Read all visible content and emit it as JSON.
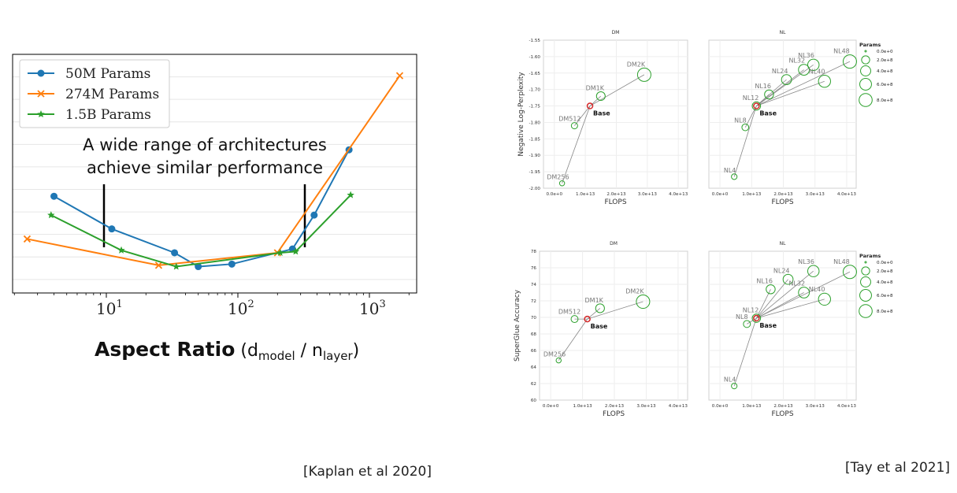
{
  "citations": {
    "left": "[Kaplan et al 2020]",
    "right": "[Tay et al 2021]"
  },
  "chart_data": [
    {
      "type": "line",
      "xlabel_main": "Aspect Ratio",
      "xlabel_paren_open": " (d",
      "xlabel_sub1": "model",
      "xlabel_mid": " / n",
      "xlabel_sub2": "layer",
      "xlabel_paren_close": ")",
      "annotation": [
        "A wide range of architectures",
        "achieve similar performance"
      ],
      "xscale": "log",
      "xticks": [
        {
          "base": "10",
          "exp": "1",
          "value": 10
        },
        {
          "base": "10",
          "exp": "2",
          "value": 100
        },
        {
          "base": "10",
          "exp": "3",
          "value": 1000
        }
      ],
      "legend": "top-left",
      "grid": "horizontal",
      "series": [
        {
          "name": "50M Params",
          "color": "#1f77b4",
          "marker": "circle",
          "x": [
            4,
            11,
            33,
            50,
            90,
            260,
            380,
            700
          ],
          "y": [
            3.32,
            3.06,
            2.87,
            2.76,
            2.78,
            2.9,
            3.17,
            3.69
          ]
        },
        {
          "name": "274M Params",
          "color": "#ff7f0e",
          "marker": "x",
          "x": [
            2.5,
            25,
            200,
            1700
          ],
          "y": [
            2.98,
            2.77,
            2.87,
            4.28
          ]
        },
        {
          "name": "1.5B Params",
          "color": "#2ca02c",
          "marker": "star",
          "x": [
            3.8,
            13,
            34,
            210,
            275,
            720
          ],
          "y": [
            3.17,
            2.89,
            2.76,
            2.87,
            2.88,
            3.33
          ]
        }
      ]
    },
    {
      "type": "scatter",
      "title": "DM",
      "xlabel": "FLOPS",
      "ylabel": "Negative Log-Perplexity",
      "yticks": [
        "-1.55",
        "-1.60",
        "-1.65",
        "-1.70",
        "-1.75",
        "-1.80",
        "-1.85",
        "-1.90",
        "-1.95",
        "-2.00"
      ],
      "xticks": [
        "0.0e+0",
        "1.0e+13",
        "2.0e+13",
        "3.0e+13",
        "4.0e+13"
      ],
      "base": {
        "label": "Base",
        "x": 11500000000000.0,
        "y": -1.75
      },
      "points": [
        {
          "label": "DM256",
          "x": 2500000000000.0,
          "y": -1.985,
          "params": 30000000.0
        },
        {
          "label": "DM512",
          "x": 6500000000000.0,
          "y": -1.81,
          "params": 80000000.0
        },
        {
          "label": "DM1K",
          "x": 15000000000000.0,
          "y": -1.72,
          "params": 250000000.0
        },
        {
          "label": "DM2K",
          "x": 29000000000000.0,
          "y": -1.655,
          "params": 850000000.0
        }
      ]
    },
    {
      "type": "scatter",
      "title": "NL",
      "xlabel": "FLOPS",
      "xticks": [
        "0.0e+0",
        "1.0e+13",
        "2.0e+13",
        "3.0e+13",
        "4.0e+13"
      ],
      "legend_title": "Params",
      "legend_items": [
        "0.0e+0",
        "2.0e+8",
        "4.0e+8",
        "6.0e+8",
        "8.0e+8"
      ],
      "base": {
        "label": "Base",
        "x": 11500000000000.0,
        "y": -1.75
      },
      "points": [
        {
          "label": "NL4",
          "x": 4500000000000.0,
          "y": -1.965,
          "params": 50000000.0
        },
        {
          "label": "NL8",
          "x": 8000000000000.0,
          "y": -1.815,
          "params": 110000000.0
        },
        {
          "label": "NL12",
          "x": 11500000000000.0,
          "y": -1.75,
          "params": 220000000.0
        },
        {
          "label": "NL16",
          "x": 15500000000000.0,
          "y": -1.715,
          "params": 280000000.0
        },
        {
          "label": "NL24",
          "x": 21000000000000.0,
          "y": -1.67,
          "params": 380000000.0
        },
        {
          "label": "NL32",
          "x": 26500000000000.0,
          "y": -1.64,
          "params": 480000000.0
        },
        {
          "label": "NL36",
          "x": 29500000000000.0,
          "y": -1.625,
          "params": 550000000.0
        },
        {
          "label": "NL40",
          "x": 33000000000000.0,
          "y": -1.675,
          "params": 650000000.0
        },
        {
          "label": "NL48",
          "x": 41000000000000.0,
          "y": -1.615,
          "params": 850000000.0
        }
      ]
    },
    {
      "type": "scatter",
      "title": "DM",
      "xlabel": "FLOPS",
      "ylabel": "SuperGlue Accuracy",
      "yticks": [
        "78",
        "76",
        "74",
        "72",
        "70",
        "68",
        "66",
        "64",
        "62",
        "60"
      ],
      "xticks": [
        "0.0e+0",
        "1.0e+13",
        "2.0e+13",
        "3.0e+13",
        "4.0e+13"
      ],
      "base": {
        "label": "Base",
        "x": 11500000000000.0,
        "y": 69.8
      },
      "points": [
        {
          "label": "DM256",
          "x": 2500000000000.0,
          "y": 64.8,
          "params": 30000000.0
        },
        {
          "label": "DM512",
          "x": 7500000000000.0,
          "y": 69.8,
          "params": 120000000.0
        },
        {
          "label": "DM1K",
          "x": 15500000000000.0,
          "y": 71.1,
          "params": 260000000.0
        },
        {
          "label": "DM2K",
          "x": 29000000000000.0,
          "y": 71.9,
          "params": 850000000.0
        }
      ]
    },
    {
      "type": "scatter",
      "title": "NL",
      "xlabel": "FLOPS",
      "xticks": [
        "0.0e+0",
        "1.0e+13",
        "2.0e+13",
        "3.0e+13",
        "4.0e+13"
      ],
      "legend_title": "Params",
      "legend_items": [
        "0.0e+0",
        "2.0e+8",
        "4.0e+8",
        "6.0e+8",
        "8.0e+8"
      ],
      "base": {
        "label": "Base",
        "x": 11500000000000.0,
        "y": 69.9
      },
      "points": [
        {
          "label": "NL4",
          "x": 4500000000000.0,
          "y": 61.7,
          "params": 50000000.0
        },
        {
          "label": "NL8",
          "x": 8500000000000.0,
          "y": 69.2,
          "params": 120000000.0
        },
        {
          "label": "NL12",
          "x": 11500000000000.0,
          "y": 69.9,
          "params": 220000000.0
        },
        {
          "label": "NL16",
          "x": 16000000000000.0,
          "y": 73.4,
          "params": 280000000.0
        },
        {
          "label": "NL24",
          "x": 21500000000000.0,
          "y": 74.6,
          "params": 380000000.0
        },
        {
          "label": "NL32",
          "x": 26500000000000.0,
          "y": 73.0,
          "params": 480000000.0
        },
        {
          "label": "NL36",
          "x": 29500000000000.0,
          "y": 75.6,
          "params": 550000000.0
        },
        {
          "label": "NL40",
          "x": 33000000000000.0,
          "y": 72.2,
          "params": 650000000.0
        },
        {
          "label": "NL48",
          "x": 41000000000000.0,
          "y": 75.5,
          "params": 850000000.0
        }
      ]
    }
  ]
}
